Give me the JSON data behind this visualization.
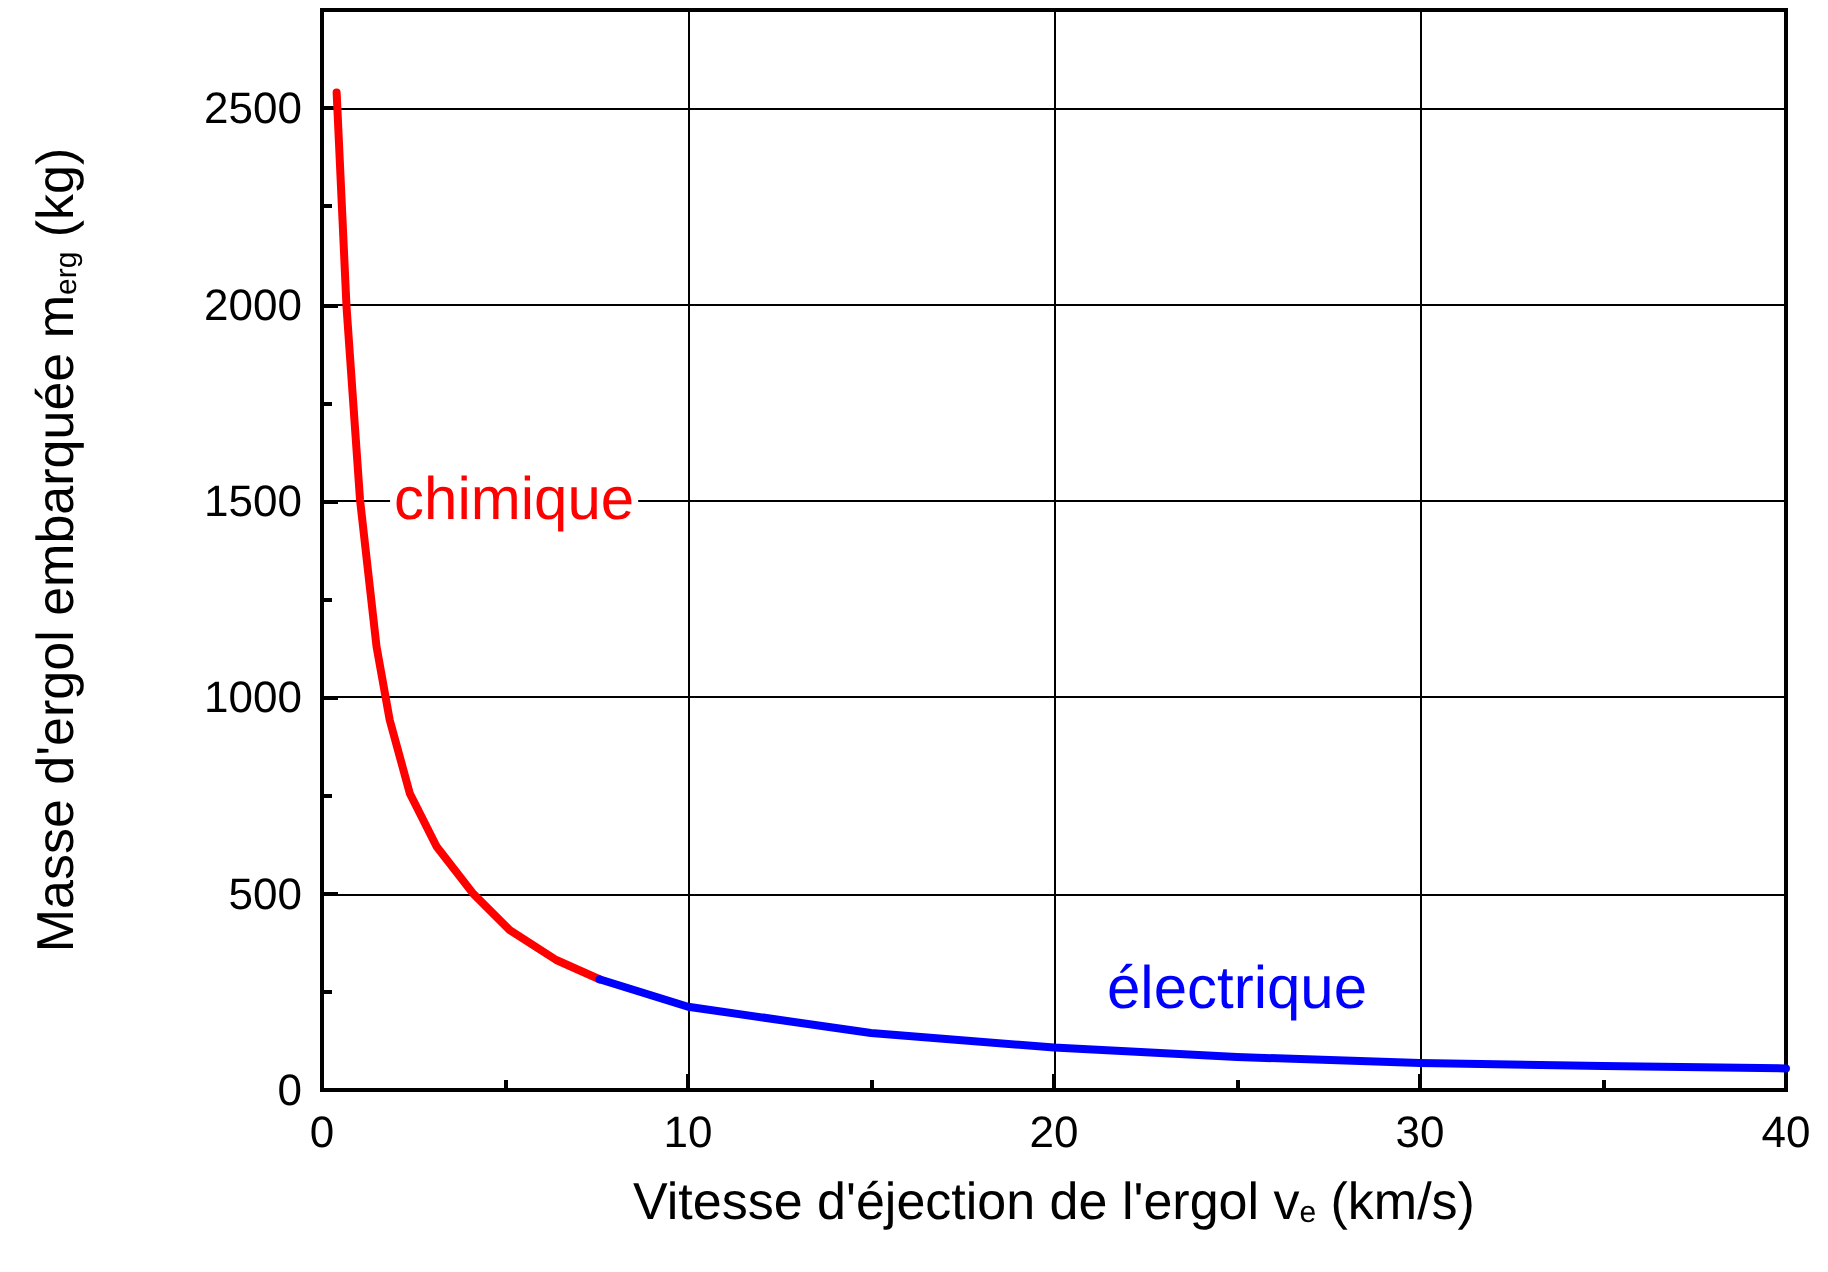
{
  "chart_data": {
    "type": "line",
    "xlabel": "Vitesse d'éjection de l'ergol v$_{e}$ (km/s)",
    "ylabel": "Masse d'ergol embarquée m$_{erg}$ (kg)",
    "xlim": [
      0,
      40
    ],
    "xticks": [
      0,
      10,
      20,
      30,
      40
    ],
    "ylim": [
      0,
      2750
    ],
    "yticks": [
      0,
      500,
      1000,
      1500,
      2000,
      2500
    ],
    "grid": true,
    "legend": false,
    "marker": "none",
    "line_style": "solid",
    "series": [
      {
        "name": "chimique",
        "color": "#ff0000",
        "x": [
          0.4,
          0.67,
          1.04,
          1.49,
          1.85,
          2.4,
          3.13,
          4.13,
          5.13,
          6.4,
          7.58
        ],
        "values": [
          2540,
          1994,
          1502,
          1129,
          942,
          755,
          620,
          500,
          407,
          331,
          282
        ]
      },
      {
        "name": "électrique",
        "color": "#0000ff",
        "x": [
          7.58,
          10,
          15,
          20,
          25,
          30,
          35,
          40
        ],
        "values": [
          282,
          212,
          145,
          108,
          84,
          69,
          61,
          55
        ]
      }
    ]
  }
}
